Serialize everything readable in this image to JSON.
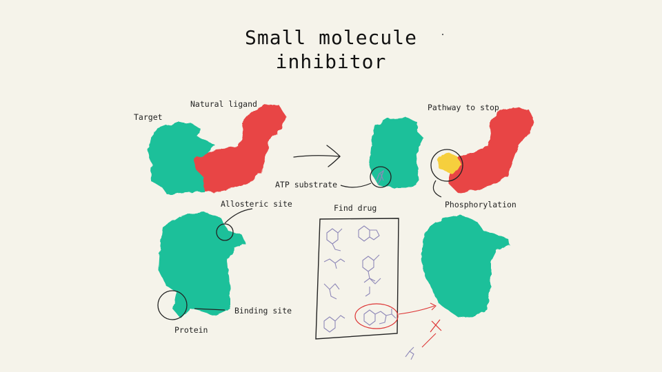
{
  "title": {
    "line1": "Small molecule",
    "line2": "inhibitor"
  },
  "labels": {
    "target": "Target",
    "natural_ligand": "Natural ligand",
    "pathway_to_stop": "Pathway to stop",
    "atp_substrate": "ATP substrate",
    "phosphorylation": "Phosphorylation",
    "allosteric_site": "Allosteric site",
    "find_drug": "Find drug",
    "binding_site": "Binding site",
    "protein": "Protein"
  },
  "colors": {
    "background": "#f5f3ea",
    "protein": "#1fc09a",
    "ligand": "#e84545",
    "phosphate": "#f6cf3e",
    "molecule": "#8e88b8",
    "highlight": "#d33"
  }
}
